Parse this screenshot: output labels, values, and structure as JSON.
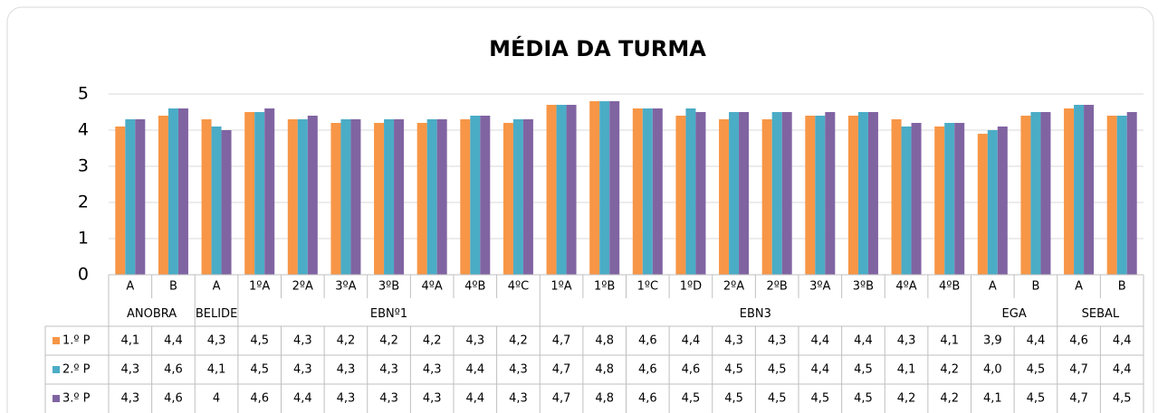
{
  "chart_data": {
    "type": "bar",
    "title": "MÉDIA DA TURMA",
    "groups": [
      {
        "name": "ANOBRA",
        "categories": [
          "A",
          "B"
        ]
      },
      {
        "name": "BELIDE",
        "categories": [
          "A"
        ]
      },
      {
        "name": "EBNº1",
        "categories": [
          "1ºA",
          "2ºA",
          "3ºA",
          "3ºB",
          "4ºA",
          "4ºB",
          "4ºC"
        ]
      },
      {
        "name": "EBN3",
        "categories": [
          "1ºA",
          "1ºB",
          "1ºC",
          "1ºD",
          "2ºA",
          "2ºB",
          "3ºA",
          "3ºB",
          "4ºA",
          "4ºB"
        ]
      },
      {
        "name": "EGA",
        "categories": [
          "A",
          "B"
        ]
      },
      {
        "name": "SEBAL",
        "categories": [
          "A",
          "B"
        ]
      }
    ],
    "series": [
      {
        "name": "1.º P",
        "color": "#f79646",
        "values": [
          4.1,
          4.4,
          4.3,
          4.5,
          4.3,
          4.2,
          4.2,
          4.2,
          4.3,
          4.2,
          4.7,
          4.8,
          4.6,
          4.4,
          4.3,
          4.3,
          4.4,
          4.4,
          4.3,
          4.1,
          3.9,
          4.4,
          4.6,
          4.4
        ],
        "value_labels": [
          "4,1",
          "4,4",
          "4,3",
          "4,5",
          "4,3",
          "4,2",
          "4,2",
          "4,2",
          "4,3",
          "4,2",
          "4,7",
          "4,8",
          "4,6",
          "4,4",
          "4,3",
          "4,3",
          "4,4",
          "4,4",
          "4,3",
          "4,1",
          "3,9",
          "4,4",
          "4,6",
          "4,4"
        ]
      },
      {
        "name": "2.º P",
        "color": "#4bacc6",
        "values": [
          4.3,
          4.6,
          4.1,
          4.5,
          4.3,
          4.3,
          4.3,
          4.3,
          4.4,
          4.3,
          4.7,
          4.8,
          4.6,
          4.6,
          4.5,
          4.5,
          4.4,
          4.5,
          4.1,
          4.2,
          4.0,
          4.5,
          4.7,
          4.4
        ],
        "value_labels": [
          "4,3",
          "4,6",
          "4,1",
          "4,5",
          "4,3",
          "4,3",
          "4,3",
          "4,3",
          "4,4",
          "4,3",
          "4,7",
          "4,8",
          "4,6",
          "4,6",
          "4,5",
          "4,5",
          "4,4",
          "4,5",
          "4,1",
          "4,2",
          "4,0",
          "4,5",
          "4,7",
          "4,4"
        ]
      },
      {
        "name": "3.º P",
        "color": "#8064a2",
        "values": [
          4.3,
          4.6,
          4,
          4.6,
          4.4,
          4.3,
          4.3,
          4.3,
          4.4,
          4.3,
          4.7,
          4.8,
          4.6,
          4.5,
          4.5,
          4.5,
          4.5,
          4.5,
          4.2,
          4.2,
          4.1,
          4.5,
          4.7,
          4.5
        ],
        "value_labels": [
          "4,3",
          "4,6",
          "4",
          "4,6",
          "4,4",
          "4,3",
          "4,3",
          "4,3",
          "4,4",
          "4,3",
          "4,7",
          "4,8",
          "4,6",
          "4,5",
          "4,5",
          "4,5",
          "4,5",
          "4,5",
          "4,2",
          "4,2",
          "4,1",
          "4,5",
          "4,7",
          "4,5"
        ]
      }
    ],
    "ylim": [
      0,
      5
    ],
    "yticks": [
      0,
      1,
      2,
      3,
      4,
      5
    ],
    "grid": true
  }
}
